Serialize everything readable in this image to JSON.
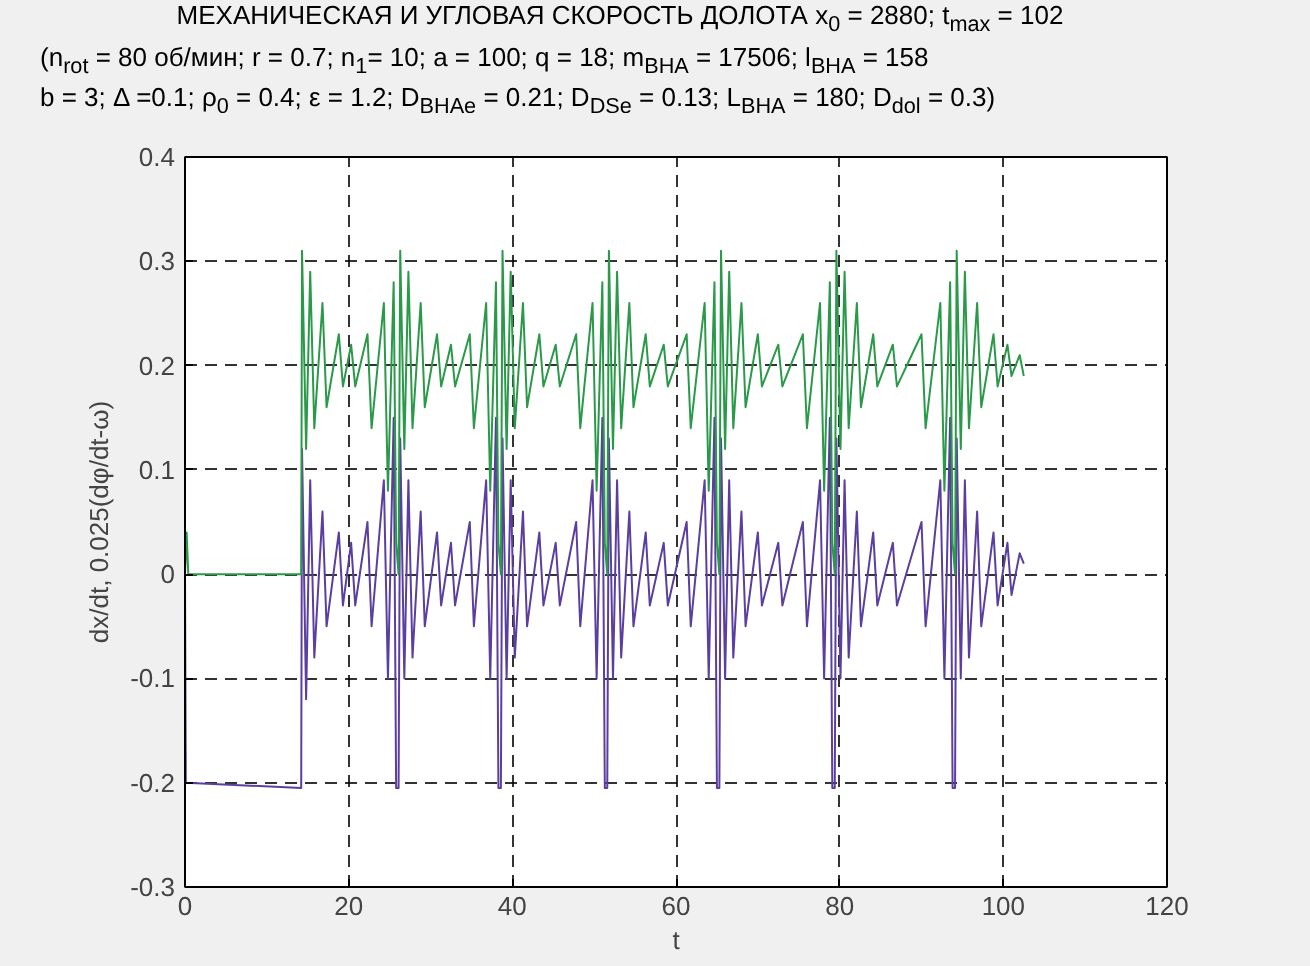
{
  "chart_data": {
    "type": "line",
    "title": "МЕХАНИЧЕСКАЯ И УГЛОВАЯ СКОРОСТЬ ДОЛОТА   x$_{0}$ = 2880;   t$_{max}$ = 102",
    "subtitle": "(n$_{rot}$ = 80 об/мин;  r = 0.7;  n$_{1}$= 10;  a = 100;  q = 18;   m$_{BHA}$ = 17506;   l$_{BHA}$ = 158\nb = 3; Δ =0.1;  ρ$_{0}$ = 0.4; ε = 1.2;  D$_{BHAe}$ =  0.21;  D$_{DSe}$ =  0.13;  L$_{BHA}$ =  180;  D$_{dol}$ = 0.3)",
    "xlabel": "t",
    "ylabel": "dx/dt, 0.025(dφ/dt-ω)",
    "xlim": [
      0,
      120
    ],
    "ylim": [
      -0.3,
      0.4
    ],
    "xticks": [
      0,
      20,
      40,
      60,
      80,
      100,
      120
    ],
    "yticks": [
      -0.3,
      -0.2,
      -0.1,
      0,
      0.1,
      0.2,
      0.3,
      0.4
    ],
    "grid": true,
    "line_style": "solid",
    "marker": "none",
    "series": [
      {
        "color": "#5b3fa0",
        "x": [
          0,
          0.1,
          14.2,
          14.3,
          14.8,
          15.3,
          15.8,
          16.8,
          17.3,
          18.8,
          19.3,
          20.3,
          20.8,
          22.3,
          22.8,
          24.3,
          24.8,
          25.5,
          25.8,
          26.1,
          26.3,
          26.8,
          27.3,
          27.8,
          28.8,
          29.3,
          30.8,
          31.3,
          32.5,
          33,
          34.8,
          35.3,
          36.8,
          37.3,
          38,
          38.3,
          38.6,
          38.8,
          39.3,
          39.8,
          40.3,
          41.3,
          41.8,
          43.3,
          43.8,
          45.3,
          45.8,
          47.8,
          48.3,
          49.8,
          50.3,
          51,
          51.3,
          51.6,
          51.8,
          52.3,
          52.8,
          53.3,
          54.3,
          54.8,
          56.3,
          56.8,
          58.5,
          59,
          61.3,
          61.8,
          63.5,
          64,
          64.7,
          65,
          65.3,
          65.5,
          66,
          66.5,
          67,
          68,
          68.5,
          70,
          70.5,
          72.5,
          73,
          75.5,
          76,
          77.6,
          78.1,
          78.8,
          79.1,
          79.4,
          79.6,
          80.1,
          80.6,
          81.1,
          82.1,
          82.6,
          84.1,
          84.6,
          86.5,
          87,
          90,
          90.5,
          92.3,
          92.8,
          93.5,
          93.8,
          94.1,
          94.3,
          94.8,
          95.3,
          95.8,
          96.8,
          97.3,
          98.8,
          99.3,
          100.5,
          101,
          102,
          102.5
        ],
        "values": [
          0,
          -0.2,
          -0.205,
          0.12,
          -0.12,
          0.09,
          -0.08,
          0.06,
          -0.05,
          0.04,
          -0.03,
          0.03,
          -0.03,
          0.05,
          -0.05,
          0.09,
          -0.1,
          0.15,
          -0.205,
          -0.205,
          0.13,
          -0.1,
          0.09,
          -0.08,
          0.06,
          -0.05,
          0.04,
          -0.03,
          0.03,
          -0.03,
          0.05,
          -0.05,
          0.09,
          -0.1,
          0.15,
          -0.205,
          -0.205,
          0.13,
          -0.1,
          0.09,
          -0.08,
          0.06,
          -0.05,
          0.04,
          -0.03,
          0.03,
          -0.03,
          0.05,
          -0.05,
          0.09,
          -0.1,
          0.15,
          -0.205,
          -0.205,
          0.13,
          -0.1,
          0.09,
          -0.08,
          0.06,
          -0.05,
          0.04,
          -0.03,
          0.03,
          -0.03,
          0.05,
          -0.05,
          0.09,
          -0.1,
          0.15,
          -0.205,
          -0.205,
          0.13,
          -0.1,
          0.09,
          -0.08,
          0.06,
          -0.05,
          0.04,
          -0.03,
          0.03,
          -0.03,
          0.05,
          -0.05,
          0.09,
          -0.1,
          0.15,
          -0.205,
          -0.205,
          0.13,
          -0.1,
          0.09,
          -0.08,
          0.06,
          -0.05,
          0.04,
          -0.03,
          0.03,
          -0.03,
          0.05,
          -0.05,
          0.09,
          -0.1,
          0.15,
          -0.205,
          -0.205,
          0.13,
          -0.1,
          0.09,
          -0.08,
          0.06,
          -0.05,
          0.04,
          -0.03,
          0.03,
          -0.02,
          0.02,
          0.01
        ]
      },
      {
        "color": "#2a9a4a",
        "x": [
          0,
          0.2,
          0.4,
          14.2,
          14.3,
          14.8,
          15.3,
          15.8,
          16.8,
          17.3,
          18.8,
          19.3,
          20.3,
          20.8,
          22.3,
          22.8,
          24.3,
          24.8,
          25.5,
          25.8,
          26.1,
          26.3,
          26.8,
          27.3,
          27.8,
          28.8,
          29.3,
          30.8,
          31.3,
          32.5,
          33,
          34.8,
          35.3,
          36.8,
          37.3,
          38,
          38.3,
          38.6,
          38.8,
          39.3,
          39.8,
          40.3,
          41.3,
          41.8,
          43.3,
          43.8,
          45.3,
          45.8,
          47.8,
          48.3,
          49.8,
          50.3,
          51,
          51.3,
          51.6,
          51.8,
          52.3,
          52.8,
          53.3,
          54.3,
          54.8,
          56.3,
          56.8,
          58.5,
          59,
          61.3,
          61.8,
          63.5,
          64,
          64.7,
          65,
          65.3,
          65.5,
          66,
          66.5,
          67,
          68,
          68.5,
          70,
          70.5,
          72.5,
          73,
          75.5,
          76,
          77.6,
          78.1,
          78.8,
          79.1,
          79.4,
          79.6,
          80.1,
          80.6,
          81.1,
          82.1,
          82.6,
          84.1,
          84.6,
          86.5,
          87,
          90,
          90.5,
          92.3,
          92.8,
          93.5,
          93.8,
          94.1,
          94.3,
          94.8,
          95.3,
          95.8,
          96.8,
          97.3,
          98.8,
          99.3,
          100.5,
          101,
          102,
          102.5
        ],
        "values": [
          0,
          0.04,
          0,
          0,
          0.31,
          0.12,
          0.29,
          0.14,
          0.26,
          0.16,
          0.23,
          0.18,
          0.22,
          0.18,
          0.23,
          0.14,
          0.26,
          0.08,
          0.28,
          0.03,
          0,
          0.31,
          0.12,
          0.29,
          0.14,
          0.26,
          0.16,
          0.23,
          0.18,
          0.22,
          0.18,
          0.23,
          0.14,
          0.26,
          0.08,
          0.28,
          0.03,
          0,
          0.31,
          0.12,
          0.29,
          0.14,
          0.26,
          0.16,
          0.23,
          0.18,
          0.22,
          0.18,
          0.23,
          0.14,
          0.26,
          0.08,
          0.28,
          0.03,
          0,
          0.31,
          0.12,
          0.29,
          0.14,
          0.26,
          0.16,
          0.23,
          0.18,
          0.22,
          0.18,
          0.23,
          0.14,
          0.26,
          0.08,
          0.28,
          0.03,
          0,
          0.31,
          0.12,
          0.29,
          0.14,
          0.26,
          0.16,
          0.23,
          0.18,
          0.22,
          0.18,
          0.23,
          0.14,
          0.26,
          0.08,
          0.28,
          0.03,
          0,
          0.31,
          0.12,
          0.29,
          0.14,
          0.26,
          0.16,
          0.23,
          0.18,
          0.22,
          0.18,
          0.23,
          0.14,
          0.26,
          0.08,
          0.28,
          0.03,
          0,
          0.31,
          0.12,
          0.29,
          0.14,
          0.26,
          0.16,
          0.23,
          0.18,
          0.22,
          0.19,
          0.21,
          0.19
        ]
      }
    ]
  }
}
